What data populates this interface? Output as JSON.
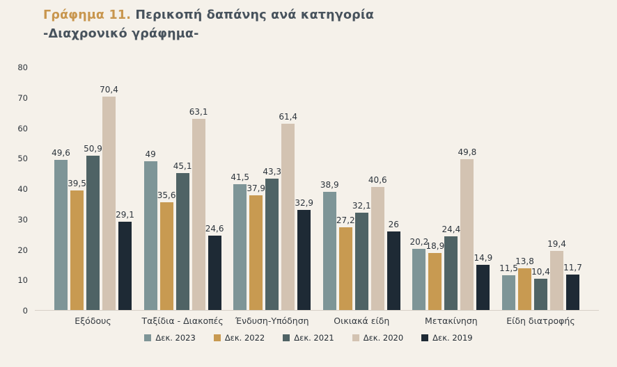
{
  "title": {
    "prefix": "Γράφημα 11.",
    "main": " Περικοπή δαπάνης ανά κατηγορία",
    "subtitle": "-Διαχρονικό γράφημα-"
  },
  "colors": {
    "background": "#f5f1ea",
    "title_prefix": "#c8964e",
    "title_text": "#47525c",
    "axis_line": "#d6d0c7"
  },
  "chart_data": {
    "type": "bar",
    "title": "Γράφημα 11. Περικοπή δαπάνης ανά κατηγορία -Διαχρονικό γράφημα-",
    "categories": [
      "Εξόδους",
      "Ταξίδια - Διακοπές",
      "Ένδυση-Υπόδηση",
      "Οικιακά είδη",
      "Μετακίνηση",
      "Είδη διατροφής"
    ],
    "series": [
      {
        "name": "Δεκ. 2023",
        "color": "#7e9597",
        "values": [
          49.6,
          49,
          41.5,
          38.9,
          20.2,
          11.5
        ],
        "labels": [
          "49,6",
          "49",
          "41,5",
          "38,9",
          "20,2",
          "11,5"
        ]
      },
      {
        "name": "Δεκ. 2022",
        "color": "#c89a51",
        "values": [
          39.5,
          35.6,
          37.9,
          27.2,
          18.9,
          13.8
        ],
        "labels": [
          "39,5",
          "35,6",
          "37,9",
          "27,2",
          "18,9",
          "13,8"
        ]
      },
      {
        "name": "Δεκ. 2021",
        "color": "#4f6365",
        "values": [
          50.9,
          45.1,
          43.3,
          32.1,
          24.4,
          10.4
        ],
        "labels": [
          "50,9",
          "45,1",
          "43,3",
          "32,1",
          "24,4",
          "10,4"
        ]
      },
      {
        "name": "Δεκ. 2020",
        "color": "#d3c3b2",
        "values": [
          70.4,
          63.1,
          61.4,
          40.6,
          49.8,
          19.4
        ],
        "labels": [
          "70,4",
          "63,1",
          "61,4",
          "40,6",
          "49,8",
          "19,4"
        ]
      },
      {
        "name": "Δεκ. 2019",
        "color": "#1e2a35",
        "values": [
          29.1,
          24.6,
          32.9,
          26,
          14.9,
          11.7
        ],
        "labels": [
          "29,1",
          "24,6",
          "32,9",
          "26",
          "14,9",
          "11,7"
        ]
      }
    ],
    "xlabel": "",
    "ylabel": "",
    "ylim": [
      0,
      80
    ],
    "yticks": [
      0,
      10,
      20,
      30,
      40,
      50,
      60,
      70,
      80
    ],
    "grid": false,
    "legend_position": "bottom"
  }
}
